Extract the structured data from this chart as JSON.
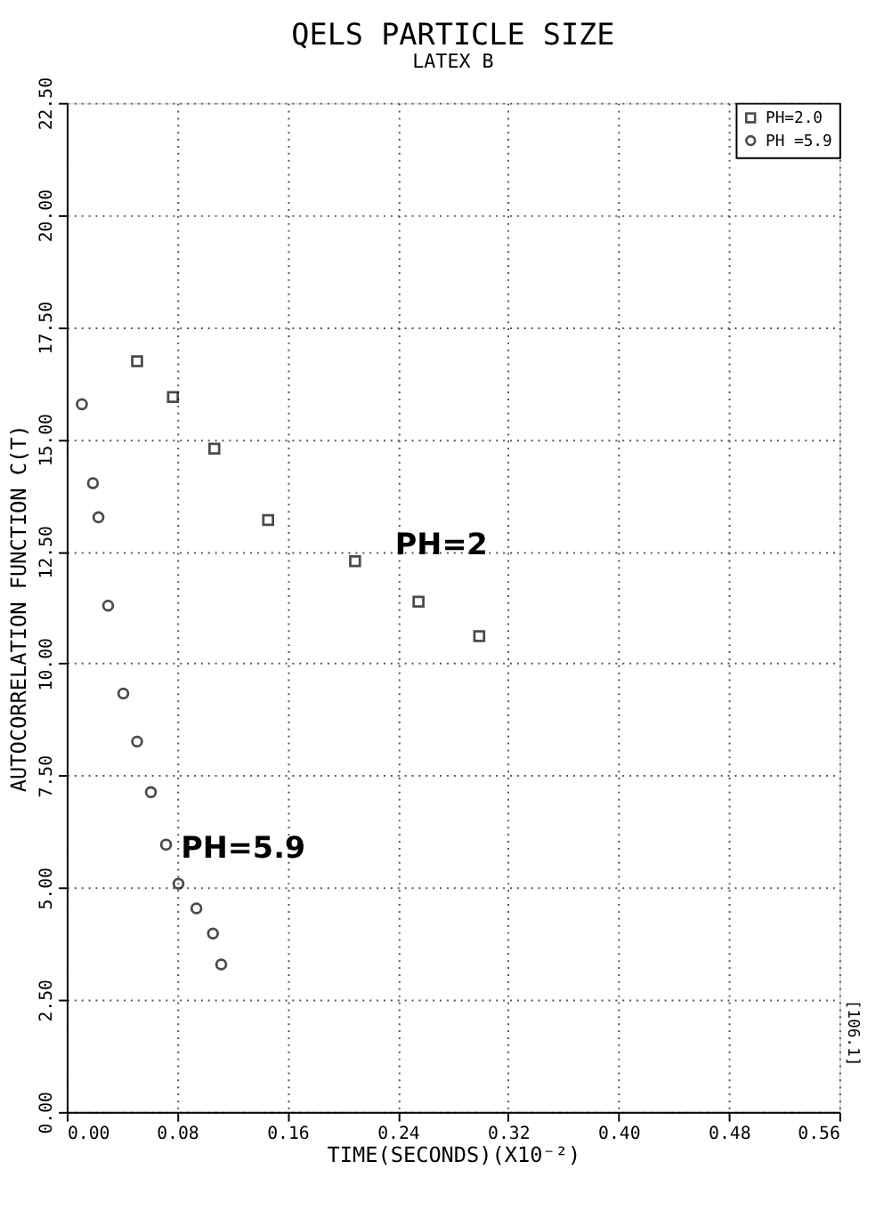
{
  "chart_data": {
    "type": "scatter",
    "title": "QELS PARTICLE SIZE",
    "subtitle": "LATEX B",
    "xlabel": "TIME(SECONDS)(X10⁻²)",
    "ylabel": "AUTOCORRELATION FUNCTION C(T)",
    "series": [
      {
        "name": "PH=2.0",
        "color": "#000000",
        "marker": "square",
        "x": [
          0.051,
          0.077,
          0.107,
          0.146,
          0.209,
          0.255,
          0.299
        ],
        "values": [
          16.74,
          15.94,
          14.79,
          13.2,
          12.28,
          11.38,
          10.61
        ]
      },
      {
        "name": "PH =5.9",
        "color": "#000000",
        "marker": "circle",
        "x": [
          0.011,
          0.019,
          0.023,
          0.03,
          0.041,
          0.051,
          0.061,
          0.072,
          0.081,
          0.094,
          0.106,
          0.112
        ],
        "values": [
          15.78,
          14.02,
          13.26,
          11.29,
          9.33,
          8.26,
          7.13,
          5.96,
          5.09,
          4.54,
          3.98,
          3.29
        ]
      }
    ],
    "xlim": [
      0,
      0.56
    ],
    "xticks": [
      {
        "value": 0,
        "label": "0.00"
      },
      {
        "value": 0.08,
        "label": "0.08"
      },
      {
        "value": 0.16,
        "label": "0.16"
      },
      {
        "value": 0.24,
        "label": "0.24"
      },
      {
        "value": 0.32,
        "label": "0.32"
      },
      {
        "value": 0.4,
        "label": "0.40"
      },
      {
        "value": 0.48,
        "label": "0.48"
      },
      {
        "value": 0.56,
        "label": "0.56"
      }
    ],
    "ylim": [
      0,
      22.5
    ],
    "yticks": [
      {
        "value": 0,
        "label": "0.00"
      },
      {
        "value": 2.5,
        "label": "2.50"
      },
      {
        "value": 5,
        "label": "5.00"
      },
      {
        "value": 7.5,
        "label": "7.50"
      },
      {
        "value": 10,
        "label": "10.00"
      },
      {
        "value": 12.5,
        "label": "12.50"
      },
      {
        "value": 15,
        "label": "15.00"
      },
      {
        "value": 17.5,
        "label": "17.50"
      },
      {
        "value": 20,
        "label": "20.00"
      },
      {
        "value": 22.5,
        "label": "22.50"
      }
    ],
    "grid": true,
    "legend": "top right",
    "annotations": [
      "PH=2",
      "PH=5.9",
      "[106.1]"
    ]
  }
}
